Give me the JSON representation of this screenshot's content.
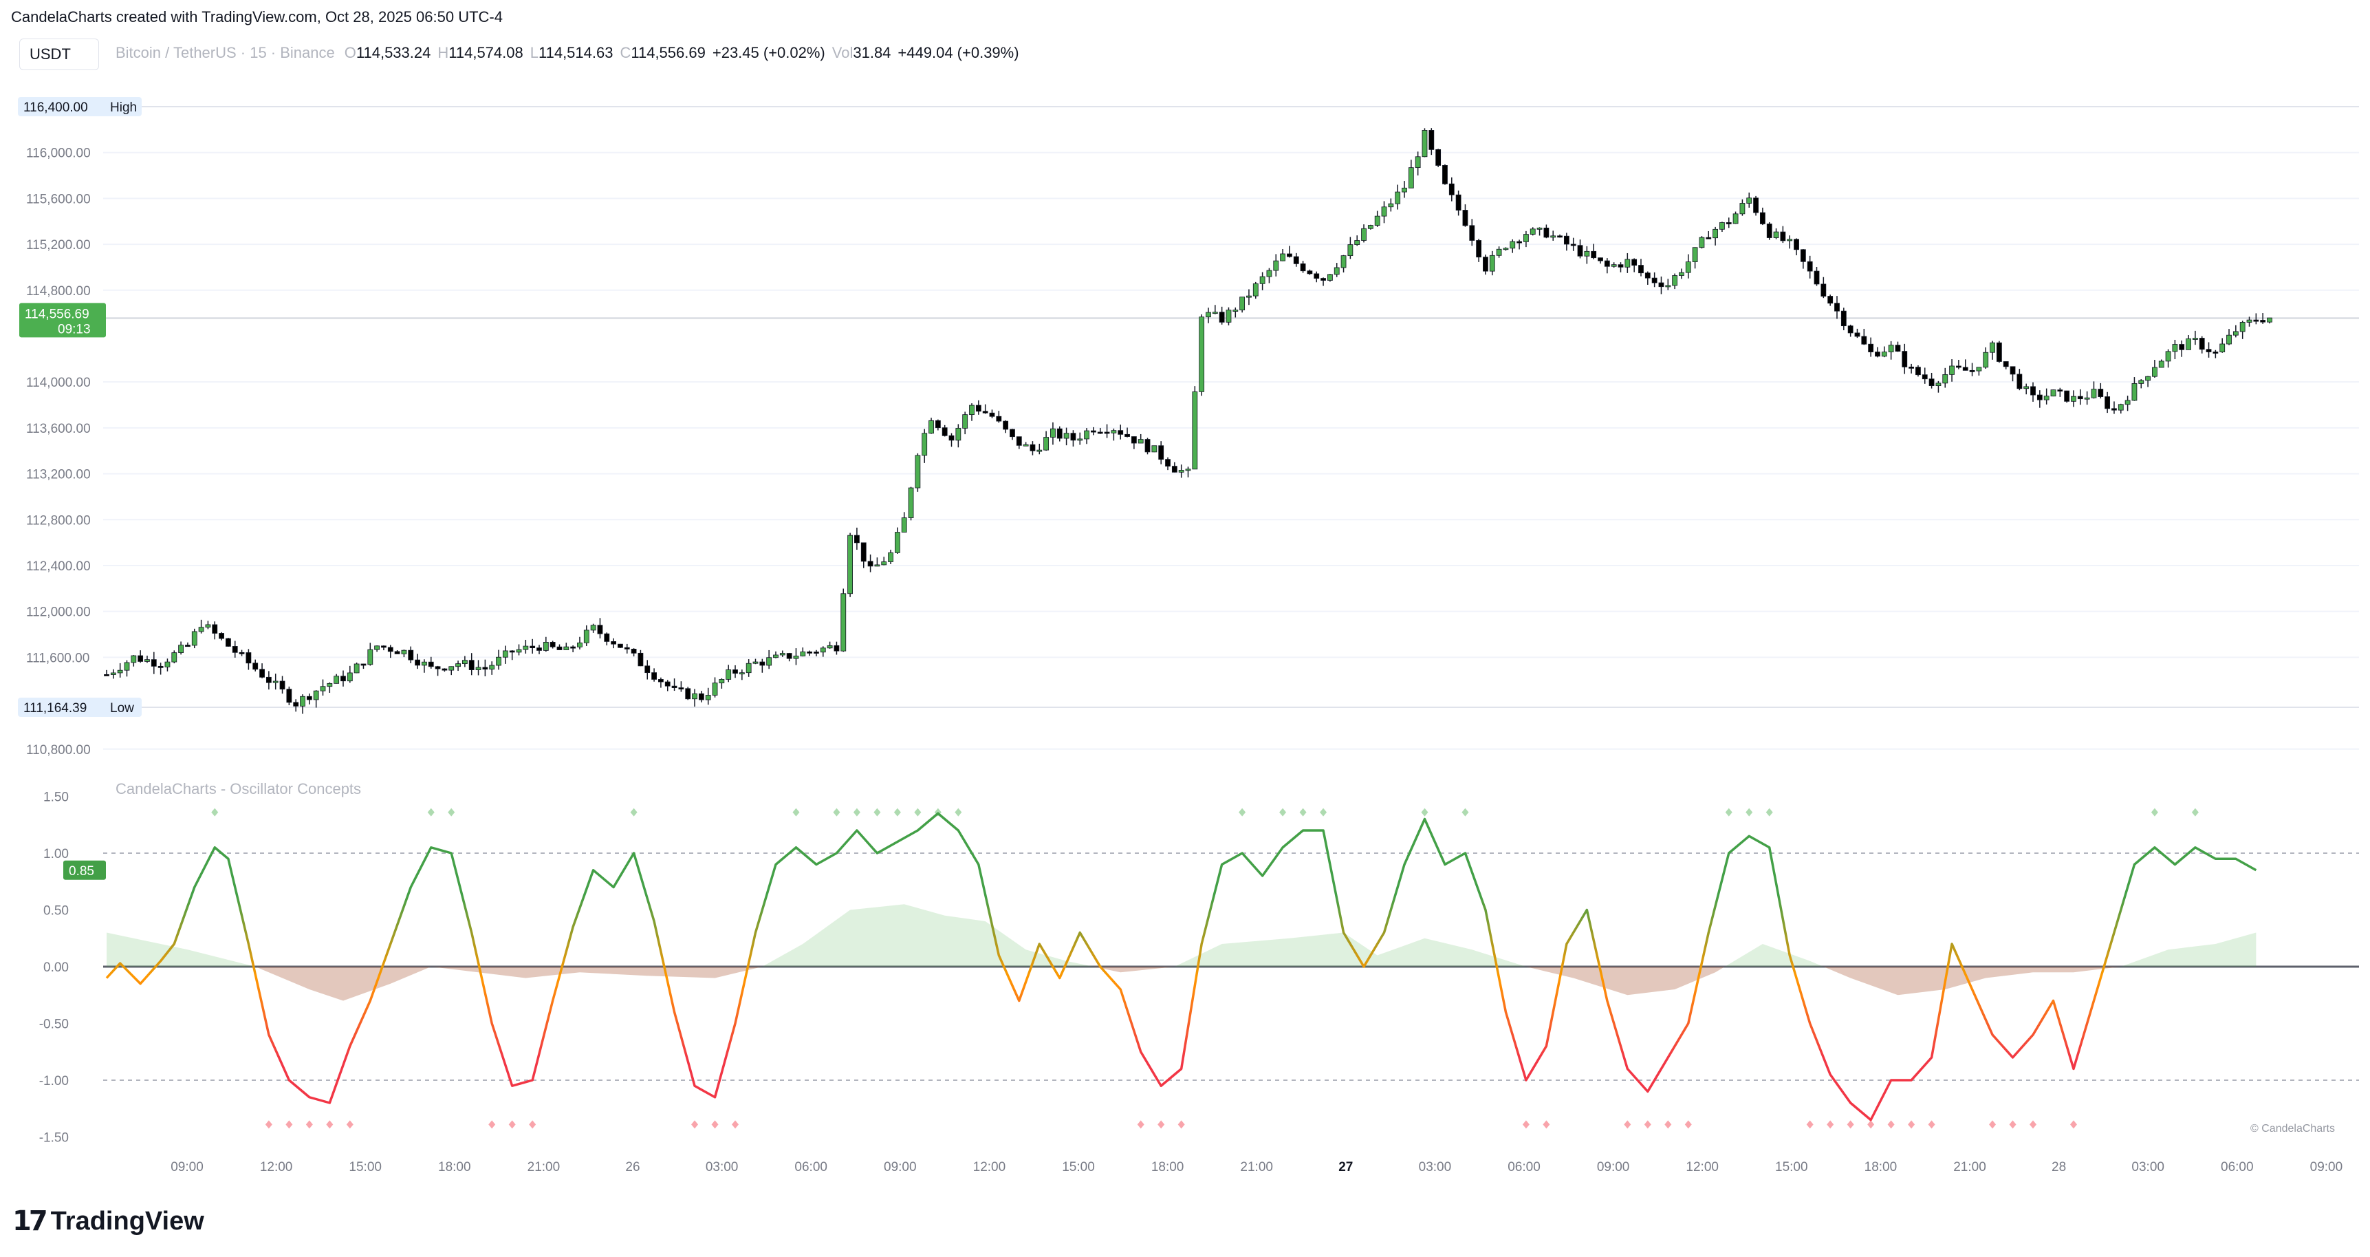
{
  "header": {
    "attribution": "CandelaCharts created with TradingView.com, Oct 28, 2025 06:50 UTC-4",
    "symbol_box": "USDT",
    "description": "Bitcoin / TetherUS · 15 · Binance",
    "ohlc": [
      {
        "label": "O",
        "value": "114,533.24"
      },
      {
        "label": "H",
        "value": "114,574.08"
      },
      {
        "label": "L",
        "value": "114,514.63"
      },
      {
        "label": "C",
        "value": "114,556.69"
      }
    ],
    "change": "+23.45 (+0.02%)",
    "volume_label": "Vol",
    "volume_value": "31.84",
    "volume_change": "+449.04 (+0.39%)"
  },
  "indicator": {
    "title": "CandelaCharts - Oscillator Concepts",
    "current_value": "0.85",
    "watermark": "© CandelaCharts"
  },
  "brand": {
    "logo_mark": "17",
    "logo_text": "TradingView"
  },
  "colors": {
    "bull": "#4caf50",
    "bear": "#000000",
    "osc_green": "#43a047",
    "osc_orange": "#ff9800",
    "osc_red": "#f23645",
    "grid": "#f0f3fa",
    "current_price_bg": "#4caf50"
  },
  "chart_data": [
    {
      "type": "candlestick",
      "title": "Bitcoin / TetherUS · 15 · Binance",
      "ylim": [
        110600,
        116600
      ],
      "y_ticks": [
        "116,000.00",
        "115,600.00",
        "115,200.00",
        "114,800.00",
        "114,000.00",
        "113,600.00",
        "113,200.00",
        "112,800.00",
        "112,400.00",
        "112,000.00",
        "111,600.00",
        "110,800.00"
      ],
      "y_tick_values": [
        116000,
        115600,
        115200,
        114800,
        114000,
        113600,
        113200,
        112800,
        112400,
        112000,
        111600,
        110800
      ],
      "x_ticks": [
        "09:00",
        "12:00",
        "15:00",
        "18:00",
        "21:00",
        "26",
        "03:00",
        "06:00",
        "09:00",
        "12:00",
        "15:00",
        "18:00",
        "21:00",
        "27",
        "03:00",
        "06:00",
        "09:00",
        "12:00",
        "15:00",
        "18:00",
        "21:00",
        "28",
        "03:00",
        "06:00",
        "09:00"
      ],
      "high_label": {
        "text": "High",
        "price": "116,400.00",
        "value": 116400
      },
      "low_label": {
        "text": "Low",
        "price": "111,164.39",
        "value": 111164.39
      },
      "current_price": {
        "price": "114,556.69",
        "countdown": "09:13",
        "value": 114556.69
      },
      "price_path": [
        [
          0,
          111450
        ],
        [
          4,
          111600
        ],
        [
          8,
          111550
        ],
        [
          12,
          111700
        ],
        [
          14,
          111900
        ],
        [
          18,
          111700
        ],
        [
          22,
          111500
        ],
        [
          26,
          111300
        ],
        [
          28,
          111200
        ],
        [
          32,
          111350
        ],
        [
          36,
          111450
        ],
        [
          40,
          111700
        ],
        [
          44,
          111650
        ],
        [
          48,
          111500
        ],
        [
          52,
          111550
        ],
        [
          56,
          111500
        ],
        [
          60,
          111650
        ],
        [
          64,
          111700
        ],
        [
          68,
          111650
        ],
        [
          72,
          111850
        ],
        [
          76,
          111700
        ],
        [
          80,
          111500
        ],
        [
          84,
          111300
        ],
        [
          88,
          111250
        ],
        [
          92,
          111450
        ],
        [
          96,
          111550
        ],
        [
          100,
          111600
        ],
        [
          104,
          111650
        ],
        [
          108,
          111700
        ],
        [
          110,
          112700
        ],
        [
          113,
          112350
        ],
        [
          116,
          112500
        ],
        [
          118,
          112800
        ],
        [
          120,
          113400
        ],
        [
          122,
          113700
        ],
        [
          125,
          113500
        ],
        [
          128,
          113800
        ],
        [
          131,
          113700
        ],
        [
          134,
          113500
        ],
        [
          137,
          113400
        ],
        [
          140,
          113550
        ],
        [
          143,
          113500
        ],
        [
          146,
          113600
        ],
        [
          149,
          113600
        ],
        [
          152,
          113500
        ],
        [
          155,
          113400
        ],
        [
          158,
          113250
        ],
        [
          160,
          113200
        ],
        [
          162,
          114600
        ],
        [
          165,
          114550
        ],
        [
          168,
          114700
        ],
        [
          171,
          114900
        ],
        [
          174,
          115100
        ],
        [
          177,
          115000
        ],
        [
          180,
          114900
        ],
        [
          183,
          115100
        ],
        [
          186,
          115300
        ],
        [
          189,
          115500
        ],
        [
          192,
          115700
        ],
        [
          195,
          116150
        ],
        [
          198,
          115700
        ],
        [
          201,
          115400
        ],
        [
          204,
          115000
        ],
        [
          207,
          115200
        ],
        [
          210,
          115300
        ],
        [
          213,
          115300
        ],
        [
          216,
          115200
        ],
        [
          219,
          115100
        ],
        [
          222,
          115000
        ],
        [
          225,
          115050
        ],
        [
          228,
          114900
        ],
        [
          231,
          114850
        ],
        [
          234,
          115050
        ],
        [
          237,
          115300
        ],
        [
          240,
          115400
        ],
        [
          243,
          115600
        ],
        [
          246,
          115300
        ],
        [
          249,
          115200
        ],
        [
          252,
          114950
        ],
        [
          255,
          114700
        ],
        [
          258,
          114450
        ],
        [
          261,
          114250
        ],
        [
          264,
          114300
        ],
        [
          267,
          114100
        ],
        [
          270,
          114000
        ],
        [
          273,
          114100
        ],
        [
          276,
          114100
        ],
        [
          279,
          114300
        ],
        [
          282,
          114050
        ],
        [
          285,
          113850
        ],
        [
          288,
          113900
        ],
        [
          291,
          113850
        ],
        [
          294,
          113900
        ],
        [
          297,
          113750
        ],
        [
          300,
          113950
        ],
        [
          303,
          114150
        ],
        [
          306,
          114300
        ],
        [
          309,
          114350
        ],
        [
          312,
          114250
        ],
        [
          315,
          114450
        ],
        [
          318,
          114550
        ],
        [
          320,
          114560
        ]
      ]
    },
    {
      "type": "line",
      "title": "CandelaCharts - Oscillator Concepts",
      "ylim": [
        -1.65,
        1.65
      ],
      "y_ticks": [
        "1.50",
        "1.00",
        "0.50",
        "0.00",
        "-0.50",
        "-1.00",
        "-1.50"
      ],
      "y_tick_values": [
        1.5,
        1.0,
        0.5,
        0.0,
        -0.5,
        -1.0,
        -1.5
      ],
      "levels": [
        1.0,
        -1.0
      ],
      "series": [
        {
          "values_xy": [
            [
              0,
              -0.1
            ],
            [
              2,
              0.03
            ],
            [
              5,
              -0.15
            ],
            [
              8,
              0.05
            ],
            [
              10,
              0.2
            ],
            [
              13,
              0.7
            ],
            [
              16,
              1.05
            ],
            [
              18,
              0.95
            ],
            [
              21,
              0.2
            ],
            [
              24,
              -0.6
            ],
            [
              27,
              -1.0
            ],
            [
              30,
              -1.15
            ],
            [
              33,
              -1.2
            ],
            [
              36,
              -0.7
            ],
            [
              39,
              -0.3
            ],
            [
              42,
              0.2
            ],
            [
              45,
              0.7
            ],
            [
              48,
              1.05
            ],
            [
              51,
              1.0
            ],
            [
              54,
              0.3
            ],
            [
              57,
              -0.5
            ],
            [
              60,
              -1.05
            ],
            [
              63,
              -1.0
            ],
            [
              66,
              -0.3
            ],
            [
              69,
              0.35
            ],
            [
              72,
              0.85
            ],
            [
              75,
              0.7
            ],
            [
              78,
              1.0
            ],
            [
              81,
              0.4
            ],
            [
              84,
              -0.4
            ],
            [
              87,
              -1.05
            ],
            [
              90,
              -1.15
            ],
            [
              93,
              -0.5
            ],
            [
              96,
              0.3
            ],
            [
              99,
              0.9
            ],
            [
              102,
              1.05
            ],
            [
              105,
              0.9
            ],
            [
              108,
              1.0
            ],
            [
              111,
              1.2
            ],
            [
              114,
              1.0
            ],
            [
              117,
              1.1
            ],
            [
              120,
              1.2
            ],
            [
              123,
              1.35
            ],
            [
              126,
              1.2
            ],
            [
              129,
              0.9
            ],
            [
              132,
              0.1
            ],
            [
              135,
              -0.3
            ],
            [
              138,
              0.2
            ],
            [
              141,
              -0.1
            ],
            [
              144,
              0.3
            ],
            [
              147,
              0.0
            ],
            [
              150,
              -0.2
            ],
            [
              153,
              -0.75
            ],
            [
              156,
              -1.05
            ],
            [
              159,
              -0.9
            ],
            [
              162,
              0.2
            ],
            [
              165,
              0.9
            ],
            [
              168,
              1.0
            ],
            [
              171,
              0.8
            ],
            [
              174,
              1.05
            ],
            [
              177,
              1.2
            ],
            [
              180,
              1.2
            ],
            [
              183,
              0.3
            ],
            [
              186,
              0.0
            ],
            [
              189,
              0.3
            ],
            [
              192,
              0.9
            ],
            [
              195,
              1.3
            ],
            [
              198,
              0.9
            ],
            [
              201,
              1.0
            ],
            [
              204,
              0.5
            ],
            [
              207,
              -0.4
            ],
            [
              210,
              -1.0
            ],
            [
              213,
              -0.7
            ],
            [
              216,
              0.2
            ],
            [
              219,
              0.5
            ],
            [
              222,
              -0.3
            ],
            [
              225,
              -0.9
            ],
            [
              228,
              -1.1
            ],
            [
              231,
              -0.8
            ],
            [
              234,
              -0.5
            ],
            [
              237,
              0.3
            ],
            [
              240,
              1.0
            ],
            [
              243,
              1.15
            ],
            [
              246,
              1.05
            ],
            [
              249,
              0.1
            ],
            [
              252,
              -0.5
            ],
            [
              255,
              -0.95
            ],
            [
              258,
              -1.2
            ],
            [
              261,
              -1.35
            ],
            [
              264,
              -1.0
            ],
            [
              267,
              -1.0
            ],
            [
              270,
              -0.8
            ],
            [
              273,
              0.2
            ],
            [
              276,
              -0.2
            ],
            [
              279,
              -0.6
            ],
            [
              282,
              -0.8
            ],
            [
              285,
              -0.6
            ],
            [
              288,
              -0.3
            ],
            [
              291,
              -0.9
            ],
            [
              294,
              -0.3
            ],
            [
              297,
              0.3
            ],
            [
              300,
              0.9
            ],
            [
              303,
              1.05
            ],
            [
              306,
              0.9
            ],
            [
              309,
              1.05
            ],
            [
              312,
              0.95
            ],
            [
              315,
              0.95
            ],
            [
              318,
              0.85
            ]
          ],
          "name": ""
        },
        {
          "type": "area",
          "values_xy": [
            [
              0,
              0.3
            ],
            [
              12,
              0.15
            ],
            [
              22,
              0.0
            ],
            [
              30,
              -0.2
            ],
            [
              35,
              -0.3
            ],
            [
              42,
              -0.15
            ],
            [
              48,
              0.0
            ],
            [
              55,
              -0.05
            ],
            [
              62,
              -0.1
            ],
            [
              70,
              -0.05
            ],
            [
              80,
              -0.08
            ],
            [
              90,
              -0.1
            ],
            [
              97,
              0.0
            ],
            [
              103,
              0.2
            ],
            [
              110,
              0.5
            ],
            [
              118,
              0.55
            ],
            [
              124,
              0.45
            ],
            [
              130,
              0.4
            ],
            [
              136,
              0.15
            ],
            [
              142,
              0.05
            ],
            [
              150,
              -0.05
            ],
            [
              158,
              0.0
            ],
            [
              165,
              0.2
            ],
            [
              175,
              0.25
            ],
            [
              183,
              0.3
            ],
            [
              188,
              0.1
            ],
            [
              195,
              0.25
            ],
            [
              202,
              0.15
            ],
            [
              210,
              0.0
            ],
            [
              217,
              -0.1
            ],
            [
              225,
              -0.25
            ],
            [
              232,
              -0.2
            ],
            [
              238,
              -0.05
            ],
            [
              245,
              0.2
            ],
            [
              252,
              0.05
            ],
            [
              258,
              -0.1
            ],
            [
              265,
              -0.25
            ],
            [
              272,
              -0.2
            ],
            [
              278,
              -0.1
            ],
            [
              285,
              -0.05
            ],
            [
              291,
              -0.05
            ],
            [
              298,
              0.0
            ],
            [
              305,
              0.15
            ],
            [
              312,
              0.2
            ],
            [
              318,
              0.3
            ]
          ],
          "name": ""
        }
      ]
    }
  ]
}
